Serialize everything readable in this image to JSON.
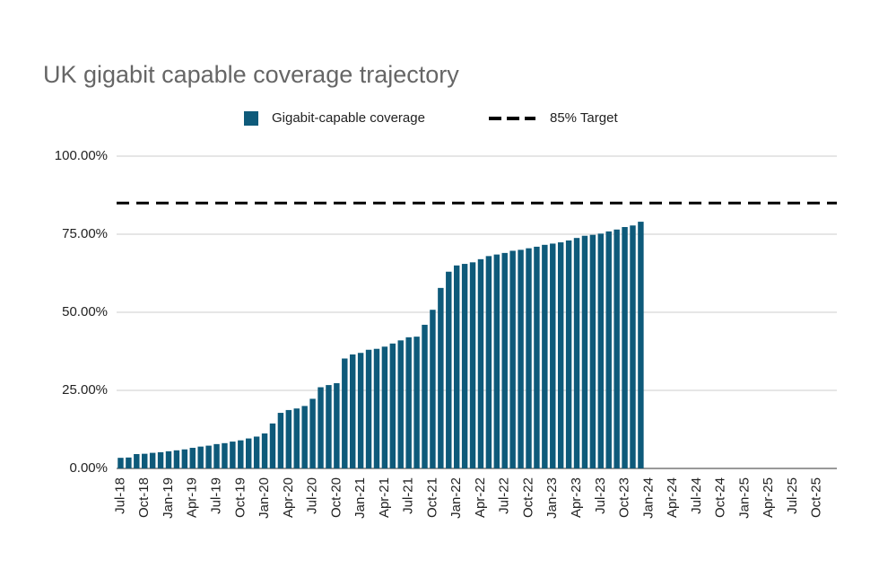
{
  "chart_data": {
    "type": "bar",
    "title": "UK gigabit capable coverage trajectory",
    "categories": [
      "Jul-18",
      null,
      null,
      "Oct-18",
      null,
      null,
      "Jan-19",
      null,
      null,
      "Apr-19",
      null,
      null,
      "Jul-19",
      null,
      null,
      "Oct-19",
      null,
      null,
      "Jan-20",
      null,
      null,
      "Apr-20",
      null,
      null,
      "Jul-20",
      null,
      null,
      "Oct-20",
      null,
      null,
      "Jan-21",
      null,
      null,
      "Apr-21",
      null,
      null,
      "Jul-21",
      null,
      null,
      "Oct-21",
      null,
      null,
      "Jan-22",
      null,
      null,
      "Apr-22",
      null,
      null,
      "Jul-22",
      null,
      null,
      "Oct-22",
      null,
      null,
      "Jan-23",
      null,
      null,
      "Apr-23",
      null,
      null,
      "Jul-23",
      null,
      null,
      "Oct-23",
      null,
      null,
      "Jan-24",
      null,
      null,
      "Apr-24",
      null,
      null,
      "Jul-24",
      null,
      null,
      "Oct-24",
      null,
      null,
      "Jan-25",
      null,
      null,
      "Apr-25",
      null,
      null,
      "Jul-25",
      null,
      null,
      "Oct-25",
      null,
      null
    ],
    "series": [
      {
        "name": "Gigabit-capable coverage",
        "color": "#0e5a7a",
        "values": [
          3.4,
          3.5,
          4.6,
          4.7,
          5.0,
          5.2,
          5.5,
          5.8,
          6.1,
          6.6,
          7.0,
          7.3,
          7.8,
          8.1,
          8.6,
          9.0,
          9.6,
          10.2,
          11.2,
          14.4,
          17.8,
          18.7,
          19.2,
          20,
          22.3,
          26,
          26.7,
          27.3,
          35.2,
          36.5,
          37,
          38,
          38.3,
          39,
          40,
          41,
          42,
          42.2,
          46,
          50.8,
          57.8,
          63,
          65,
          65.5,
          66,
          67,
          68,
          68.5,
          69,
          69.7,
          70,
          70.5,
          71,
          71.6,
          72,
          72.4,
          73,
          73.8,
          74.5,
          74.8,
          75.2,
          75.9,
          76.5,
          77.3,
          77.8,
          79,
          null,
          null,
          null,
          null,
          null,
          null,
          null,
          null,
          null,
          null,
          null,
          null,
          null,
          null,
          null,
          null,
          null,
          null,
          null,
          null,
          null,
          null,
          null,
          null
        ]
      }
    ],
    "target": {
      "name": "85% Target",
      "value": 85,
      "color": "#000000"
    },
    "ylim": [
      0,
      100
    ],
    "yticks": [
      {
        "value": 0,
        "label": "0.00%"
      },
      {
        "value": 25,
        "label": "25.00%"
      },
      {
        "value": 50,
        "label": "50.00%"
      },
      {
        "value": 75,
        "label": "75.00%"
      },
      {
        "value": 100,
        "label": "100.00%"
      }
    ],
    "grid": true
  }
}
